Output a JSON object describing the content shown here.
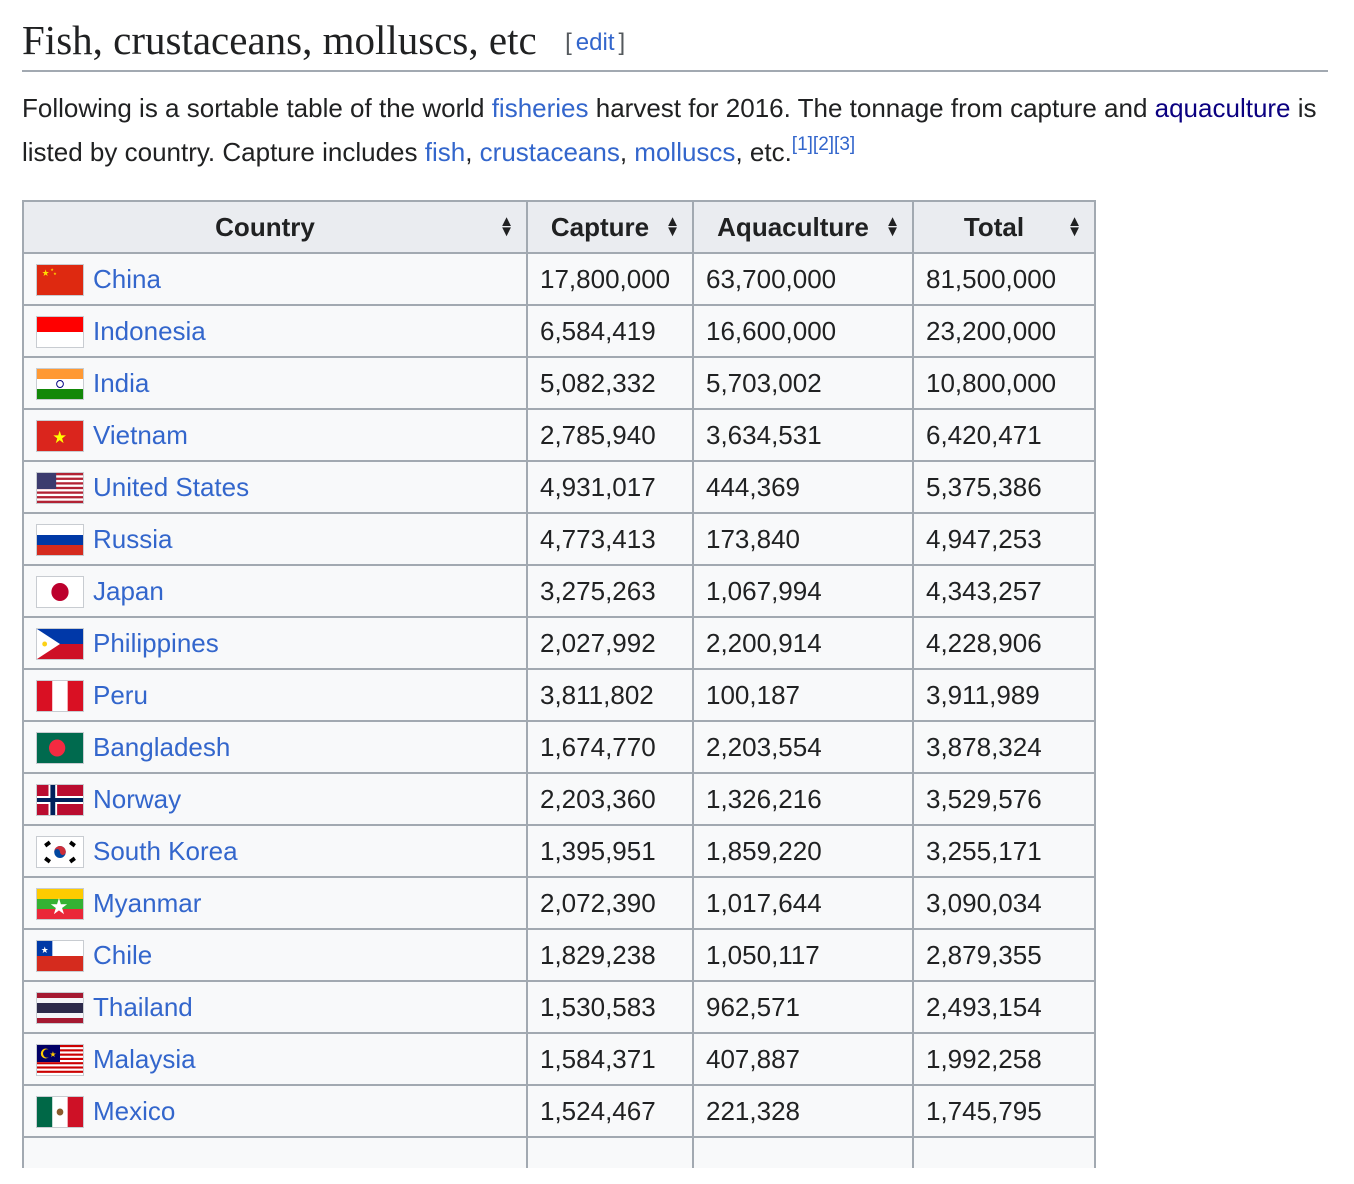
{
  "heading": {
    "title": "Fish, crustaceans, molluscs, etc",
    "edit_open": "[",
    "edit_label": "edit",
    "edit_close": "]"
  },
  "intro": {
    "t1": "Following is a sortable table of the world ",
    "link_fisheries": "fisheries",
    "t2": " harvest for 2016. The tonnage from capture and ",
    "link_aquaculture": "aquaculture",
    "t3": " is listed by country. Capture includes ",
    "link_fish": "fish",
    "sep1": ", ",
    "link_crustaceans": "crustaceans",
    "sep2": ", ",
    "link_molluscs": "molluscs",
    "t4": ", etc.",
    "ref1": "[1]",
    "ref2": "[2]",
    "ref3": "[3]"
  },
  "table": {
    "headers": {
      "country": "Country",
      "capture": "Capture",
      "aquaculture": "Aquaculture",
      "total": "Total"
    },
    "rows": [
      {
        "country": "China",
        "flag": "china-flag",
        "capture": "17,800,000",
        "aquaculture": "63,700,000",
        "total": "81,500,000"
      },
      {
        "country": "Indonesia",
        "flag": "indonesia-flag",
        "capture": "6,584,419",
        "aquaculture": "16,600,000",
        "total": "23,200,000"
      },
      {
        "country": "India",
        "flag": "india-flag",
        "capture": "5,082,332",
        "aquaculture": "5,703,002",
        "total": "10,800,000"
      },
      {
        "country": "Vietnam",
        "flag": "vietnam-flag",
        "capture": "2,785,940",
        "aquaculture": "3,634,531",
        "total": "6,420,471"
      },
      {
        "country": "United States",
        "flag": "united-states-flag",
        "capture": "4,931,017",
        "aquaculture": "444,369",
        "total": "5,375,386"
      },
      {
        "country": "Russia",
        "flag": "russia-flag",
        "capture": "4,773,413",
        "aquaculture": "173,840",
        "total": "4,947,253"
      },
      {
        "country": "Japan",
        "flag": "japan-flag",
        "capture": "3,275,263",
        "aquaculture": "1,067,994",
        "total": "4,343,257"
      },
      {
        "country": "Philippines",
        "flag": "philippines-flag",
        "capture": "2,027,992",
        "aquaculture": "2,200,914",
        "total": "4,228,906"
      },
      {
        "country": "Peru",
        "flag": "peru-flag",
        "capture": "3,811,802",
        "aquaculture": "100,187",
        "total": "3,911,989"
      },
      {
        "country": "Bangladesh",
        "flag": "bangladesh-flag",
        "capture": "1,674,770",
        "aquaculture": "2,203,554",
        "total": "3,878,324"
      },
      {
        "country": "Norway",
        "flag": "norway-flag",
        "capture": "2,203,360",
        "aquaculture": "1,326,216",
        "total": "3,529,576"
      },
      {
        "country": "South Korea",
        "flag": "south-korea-flag",
        "capture": "1,395,951",
        "aquaculture": "1,859,220",
        "total": "3,255,171"
      },
      {
        "country": "Myanmar",
        "flag": "myanmar-flag",
        "capture": "2,072,390",
        "aquaculture": "1,017,644",
        "total": "3,090,034"
      },
      {
        "country": "Chile",
        "flag": "chile-flag",
        "capture": "1,829,238",
        "aquaculture": "1,050,117",
        "total": "2,879,355"
      },
      {
        "country": "Thailand",
        "flag": "thailand-flag",
        "capture": "1,530,583",
        "aquaculture": "962,571",
        "total": "2,493,154"
      },
      {
        "country": "Malaysia",
        "flag": "malaysia-flag",
        "capture": "1,584,371",
        "aquaculture": "407,887",
        "total": "1,992,258"
      },
      {
        "country": "Mexico",
        "flag": "mexico-flag",
        "capture": "1,524,467",
        "aquaculture": "221,328",
        "total": "1,745,795"
      }
    ]
  },
  "colors": {
    "link": "#3366cc",
    "visited_link": "#0b0080",
    "border": "#a2a9b1",
    "header_bg": "#eaecf0",
    "table_bg": "#f8f9fa"
  }
}
